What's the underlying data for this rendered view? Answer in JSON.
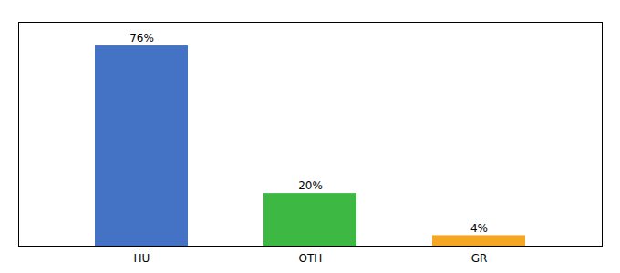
{
  "chart_data": {
    "type": "bar",
    "categories": [
      "HU",
      "OTH",
      "GR"
    ],
    "values": [
      76,
      20,
      4
    ],
    "value_labels": [
      "76%",
      "20%",
      "4%"
    ],
    "colors": [
      "#4472c4",
      "#3cb843",
      "#f5a623"
    ],
    "ylim": [
      0,
      85
    ],
    "data_labels": true,
    "tick_labels": "x"
  }
}
